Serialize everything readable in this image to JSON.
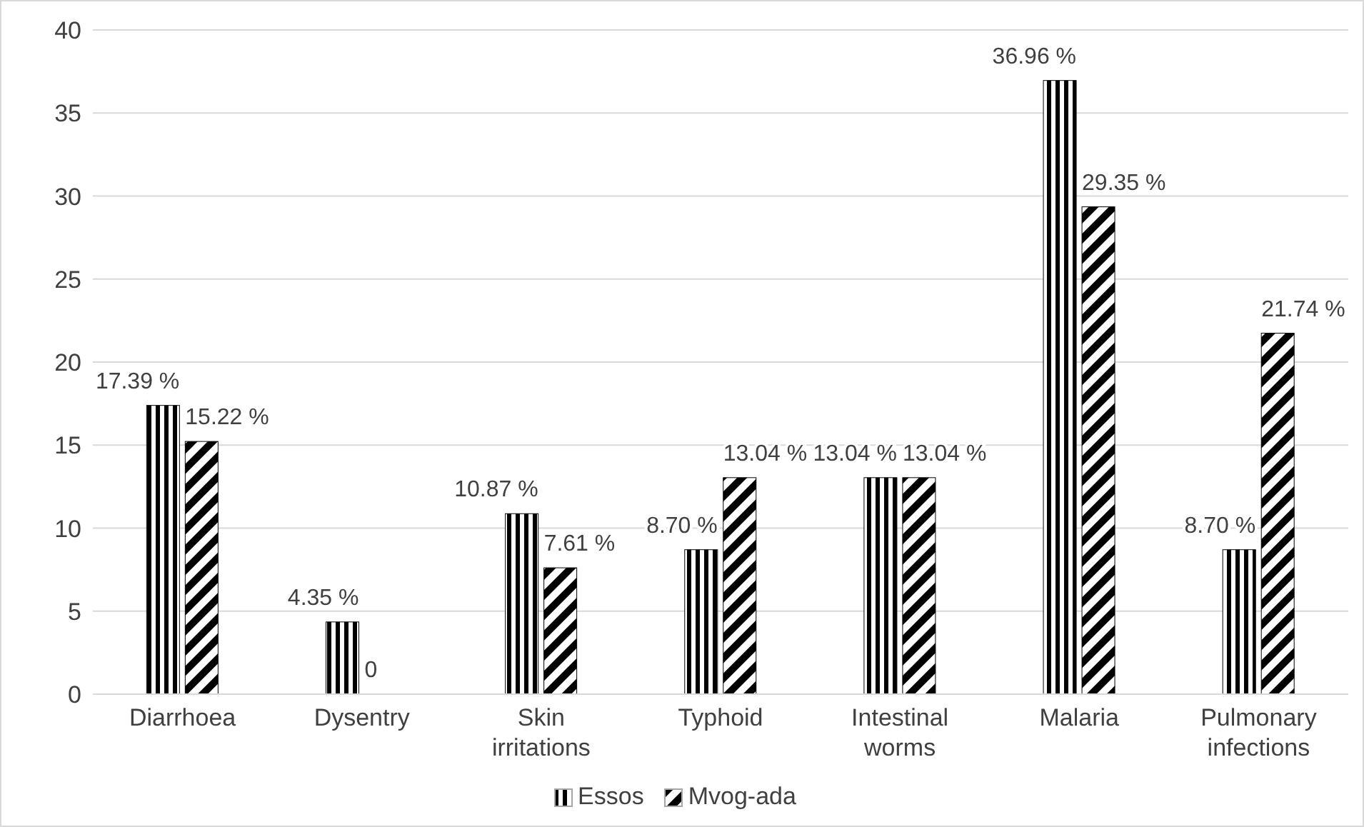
{
  "chart_data": {
    "type": "bar",
    "categories": [
      "Diarrhoea",
      "Dysentry",
      "Skin irritations",
      "Typhoid",
      "Intestinal worms",
      "Malaria",
      "Pulmonary infections"
    ],
    "series": [
      {
        "name": "Essos",
        "color": "#000000",
        "values": [
          17.39,
          4.35,
          10.87,
          8.7,
          13.04,
          36.96,
          8.7
        ],
        "value_labels": [
          "17.39 %",
          "4.35 %",
          "10.87 %",
          "8.70 %",
          "13.04 %",
          "36.96 %",
          "8.70 %"
        ]
      },
      {
        "name": "Mvog-ada",
        "color": "#000000",
        "values": [
          15.22,
          0,
          7.61,
          13.04,
          13.04,
          29.35,
          21.74
        ],
        "value_labels": [
          "15.22 %",
          "0",
          "7.61 %",
          "13.04 %",
          "13.04 %",
          "29.35 %",
          "21.74 %"
        ]
      }
    ],
    "ylim": [
      0,
      40
    ],
    "yticks": [
      0,
      5,
      10,
      15,
      20,
      25,
      30,
      35,
      40
    ],
    "grid": "y",
    "legend": "bottom"
  }
}
